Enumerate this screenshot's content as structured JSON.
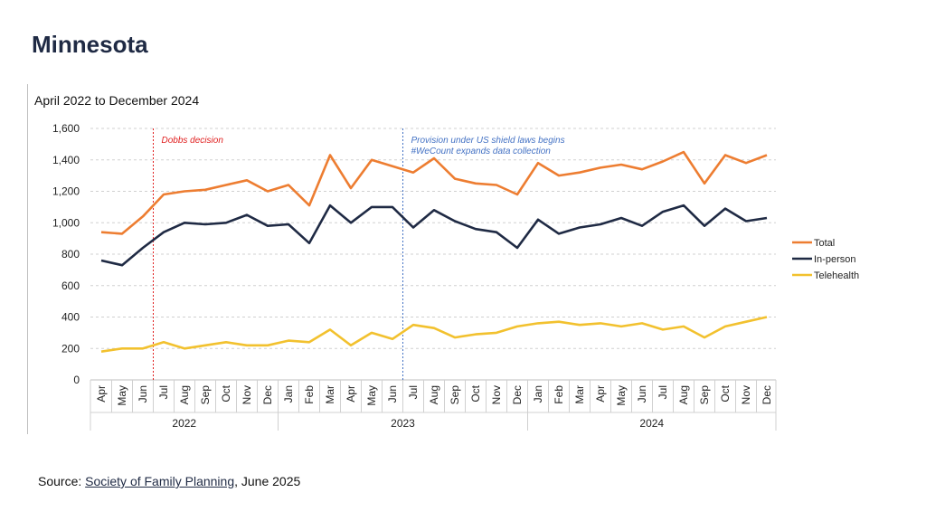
{
  "page": {
    "title": "Minnesota",
    "source_prefix": "Source: ",
    "source_link": "Society of Family Planning",
    "source_suffix": ", June 2025"
  },
  "chart_data": {
    "type": "line",
    "title": "April 2022 to December 2024",
    "xlabel": "",
    "ylabel": "",
    "ylim": [
      0,
      1600
    ],
    "yticks": [
      0,
      200,
      400,
      600,
      800,
      1000,
      1200,
      1400,
      1600
    ],
    "ytick_labels": [
      "0",
      "200",
      "400",
      "600",
      "800",
      "1,000",
      "1,200",
      "1,400",
      "1,600"
    ],
    "grid": true,
    "legend_position": "right",
    "categories": [
      "Apr",
      "May",
      "Jun",
      "Jul",
      "Aug",
      "Sep",
      "Oct",
      "Nov",
      "Dec",
      "Jan",
      "Feb",
      "Mar",
      "Apr",
      "May",
      "Jun",
      "Jul",
      "Aug",
      "Sep",
      "Oct",
      "Nov",
      "Dec",
      "Jan",
      "Feb",
      "Mar",
      "Apr",
      "May",
      "Jun",
      "Jul",
      "Aug",
      "Sep",
      "Oct",
      "Nov",
      "Dec"
    ],
    "years": [
      {
        "label": "2022",
        "start": 0,
        "end": 8
      },
      {
        "label": "2023",
        "start": 9,
        "end": 20
      },
      {
        "label": "2024",
        "start": 21,
        "end": 32
      }
    ],
    "series": [
      {
        "name": "Total",
        "color": "#ED7D31",
        "values": [
          940,
          930,
          1040,
          1180,
          1200,
          1210,
          1240,
          1270,
          1200,
          1240,
          1110,
          1430,
          1220,
          1400,
          1360,
          1320,
          1410,
          1280,
          1250,
          1240,
          1180,
          1380,
          1300,
          1320,
          1350,
          1370,
          1340,
          1390,
          1450,
          1250,
          1430,
          1380,
          1430
        ]
      },
      {
        "name": "In-person",
        "color": "#1F2A44",
        "values": [
          760,
          730,
          840,
          940,
          1000,
          990,
          1000,
          1050,
          980,
          990,
          870,
          1110,
          1000,
          1100,
          1100,
          970,
          1080,
          1010,
          960,
          940,
          840,
          1020,
          930,
          970,
          990,
          1030,
          980,
          1070,
          1110,
          980,
          1090,
          1010,
          1030
        ]
      },
      {
        "name": "Telehealth",
        "color": "#F2C12E",
        "values": [
          180,
          200,
          200,
          240,
          200,
          220,
          240,
          220,
          220,
          250,
          240,
          320,
          220,
          300,
          260,
          350,
          330,
          270,
          290,
          300,
          340,
          360,
          370,
          350,
          360,
          340,
          360,
          320,
          340,
          270,
          340,
          370,
          400
        ]
      }
    ],
    "annotations": [
      {
        "at_index": 2,
        "text_lines": [
          "Dobbs decision"
        ],
        "color": "#E02020"
      },
      {
        "at_index": 14,
        "text_lines": [
          "Provision under US shield laws begins",
          "#WeCount expands data collection"
        ],
        "color": "#4472C4"
      }
    ]
  }
}
